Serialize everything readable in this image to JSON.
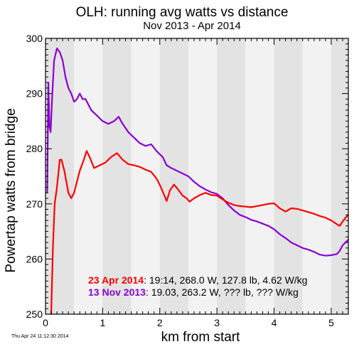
{
  "chart_data": {
    "type": "line",
    "title": "OLH: running avg watts vs distance",
    "subtitle": "Nov 2013 - Apr 2014",
    "xlabel": "km from start",
    "ylabel": "Powertap watts from bridge",
    "xlim": [
      0,
      5.3
    ],
    "ylim": [
      250,
      300
    ],
    "xticks": [
      "0",
      "1",
      "2",
      "3",
      "4",
      "5"
    ],
    "yticks": [
      "250",
      "260",
      "270",
      "280",
      "290",
      "300"
    ],
    "grid": false,
    "band_colors": [
      "#e3e3e3",
      "#f2f2f2"
    ],
    "timestamp": "Thu Apr 24 11:12:30 2014",
    "series": [
      {
        "date_label": "23 Apr 2014",
        "stats": ": 19:14, 268.0 W, 127.8 lb, 4.62 W/kg",
        "color": "#ff0000",
        "points": [
          [
            0.1,
            250
          ],
          [
            0.13,
            262
          ],
          [
            0.16,
            270
          ],
          [
            0.2,
            273
          ],
          [
            0.25,
            278
          ],
          [
            0.28,
            278
          ],
          [
            0.33,
            276
          ],
          [
            0.4,
            272
          ],
          [
            0.45,
            271
          ],
          [
            0.5,
            272
          ],
          [
            0.55,
            274
          ],
          [
            0.6,
            276
          ],
          [
            0.67,
            278
          ],
          [
            0.72,
            279.6
          ],
          [
            0.78,
            278.3
          ],
          [
            0.85,
            276.5
          ],
          [
            0.95,
            277
          ],
          [
            1.05,
            277.5
          ],
          [
            1.15,
            278.5
          ],
          [
            1.25,
            279.2
          ],
          [
            1.35,
            278
          ],
          [
            1.45,
            277.2
          ],
          [
            1.55,
            277
          ],
          [
            1.65,
            276.7
          ],
          [
            1.75,
            276.2
          ],
          [
            1.85,
            275.8
          ],
          [
            1.95,
            274.5
          ],
          [
            2.02,
            273
          ],
          [
            2.08,
            271.5
          ],
          [
            2.12,
            270.5
          ],
          [
            2.18,
            272.5
          ],
          [
            2.25,
            273.5
          ],
          [
            2.32,
            272.6
          ],
          [
            2.4,
            271.5
          ],
          [
            2.47,
            271
          ],
          [
            2.52,
            270.4
          ],
          [
            2.6,
            271
          ],
          [
            2.7,
            271.6
          ],
          [
            2.8,
            272
          ],
          [
            2.9,
            271.6
          ],
          [
            3.0,
            271.5
          ],
          [
            3.1,
            270.8
          ],
          [
            3.2,
            270.2
          ],
          [
            3.3,
            269.8
          ],
          [
            3.4,
            269.6
          ],
          [
            3.5,
            269.5
          ],
          [
            3.6,
            269.4
          ],
          [
            3.7,
            269.6
          ],
          [
            3.8,
            269.8
          ],
          [
            3.9,
            270
          ],
          [
            4.0,
            270.1
          ],
          [
            4.1,
            269.2
          ],
          [
            4.2,
            268.6
          ],
          [
            4.3,
            269.2
          ],
          [
            4.4,
            269.1
          ],
          [
            4.5,
            268.8
          ],
          [
            4.6,
            268.5
          ],
          [
            4.7,
            268.2
          ],
          [
            4.8,
            267.8
          ],
          [
            4.9,
            267.5
          ],
          [
            5.0,
            267
          ],
          [
            5.1,
            266.3
          ],
          [
            5.15,
            266
          ],
          [
            5.2,
            266.8
          ],
          [
            5.25,
            267.5
          ],
          [
            5.3,
            268
          ]
        ]
      },
      {
        "date_label": "13 Nov 2013",
        "stats": ": 19.03, 263.2 W, ??? lb, ??? W/kg",
        "color": "#8a00d4",
        "points": [
          [
            0.03,
            272
          ],
          [
            0.05,
            292
          ],
          [
            0.07,
            284
          ],
          [
            0.09,
            283
          ],
          [
            0.12,
            290
          ],
          [
            0.15,
            296
          ],
          [
            0.2,
            298.2
          ],
          [
            0.25,
            297.5
          ],
          [
            0.3,
            296
          ],
          [
            0.35,
            293
          ],
          [
            0.4,
            291
          ],
          [
            0.45,
            290
          ],
          [
            0.5,
            288.5
          ],
          [
            0.55,
            289
          ],
          [
            0.6,
            290
          ],
          [
            0.65,
            289
          ],
          [
            0.7,
            289
          ],
          [
            0.75,
            288
          ],
          [
            0.8,
            287
          ],
          [
            0.85,
            286.5
          ],
          [
            0.9,
            286
          ],
          [
            1.0,
            285
          ],
          [
            1.1,
            284.5
          ],
          [
            1.2,
            285
          ],
          [
            1.28,
            285.8
          ],
          [
            1.35,
            284.5
          ],
          [
            1.45,
            283
          ],
          [
            1.55,
            282
          ],
          [
            1.65,
            281
          ],
          [
            1.75,
            280.5
          ],
          [
            1.85,
            280.8
          ],
          [
            1.95,
            279.5
          ],
          [
            2.05,
            278.5
          ],
          [
            2.12,
            277
          ],
          [
            2.2,
            276.5
          ],
          [
            2.3,
            276
          ],
          [
            2.4,
            275.5
          ],
          [
            2.5,
            275
          ],
          [
            2.6,
            274
          ],
          [
            2.7,
            273.2
          ],
          [
            2.8,
            272.6
          ],
          [
            2.9,
            272.1
          ],
          [
            3.0,
            271.8
          ],
          [
            3.1,
            271
          ],
          [
            3.2,
            269.8
          ],
          [
            3.3,
            268.8
          ],
          [
            3.4,
            268
          ],
          [
            3.5,
            267.6
          ],
          [
            3.6,
            267.1
          ],
          [
            3.7,
            266.8
          ],
          [
            3.8,
            266.4
          ],
          [
            3.9,
            266
          ],
          [
            4.0,
            265.4
          ],
          [
            4.1,
            264.5
          ],
          [
            4.2,
            263.8
          ],
          [
            4.3,
            263
          ],
          [
            4.4,
            262.5
          ],
          [
            4.5,
            262
          ],
          [
            4.6,
            261.7
          ],
          [
            4.7,
            261.3
          ],
          [
            4.8,
            260.8
          ],
          [
            4.9,
            260.6
          ],
          [
            5.0,
            260.7
          ],
          [
            5.1,
            260.9
          ],
          [
            5.15,
            261.5
          ],
          [
            5.2,
            262.5
          ],
          [
            5.25,
            263
          ],
          [
            5.3,
            263.5
          ]
        ]
      }
    ]
  }
}
